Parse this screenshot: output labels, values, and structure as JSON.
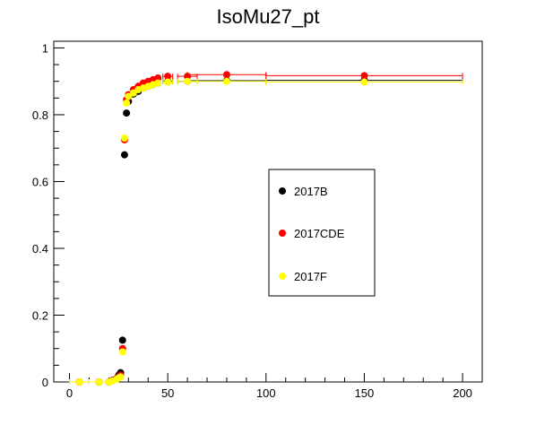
{
  "chart_data": {
    "type": "scatter",
    "title": "IsoMu27_pt",
    "xlabel": "",
    "ylabel": "",
    "xlim": [
      -8,
      210
    ],
    "ylim": [
      0,
      1.02
    ],
    "xticks": [
      0,
      50,
      100,
      150,
      200
    ],
    "xtick_labels": [
      "0",
      "50",
      "100",
      "150",
      "200"
    ],
    "yticks": [
      0,
      0.2,
      0.4,
      0.6,
      0.8,
      1
    ],
    "ytick_labels": [
      "0",
      "0.2",
      "0.4",
      "0.6",
      "0.8",
      "1"
    ],
    "grid": false,
    "legend": {
      "placement": "center-right",
      "entries": [
        "2017B",
        "2017CDE",
        "2017F"
      ]
    },
    "series": [
      {
        "name": "2017B",
        "color": "#000000",
        "x": [
          5,
          15,
          20,
          22,
          24,
          25,
          26,
          27,
          28,
          29,
          30,
          32.5,
          35,
          37.5,
          40,
          42.5,
          45,
          50,
          60,
          80,
          150
        ],
        "y": [
          0.0,
          0.0,
          0.0,
          0.005,
          0.01,
          0.02,
          0.028,
          0.125,
          0.68,
          0.805,
          0.84,
          0.862,
          0.87,
          0.88,
          0.885,
          0.89,
          0.895,
          0.9,
          0.9,
          0.902,
          0.903
        ],
        "xerr": [
          5,
          5,
          1,
          1,
          1,
          0.5,
          0.5,
          0.5,
          0.5,
          0.5,
          0.5,
          1.25,
          1.25,
          1.25,
          1.25,
          1.25,
          1.25,
          2.5,
          5,
          20,
          50
        ]
      },
      {
        "name": "2017CDE",
        "color": "#ff0000",
        "x": [
          5,
          15,
          20,
          22,
          24,
          25,
          26,
          27,
          28,
          29,
          30,
          32.5,
          35,
          37.5,
          40,
          42.5,
          45,
          50,
          60,
          80,
          150
        ],
        "y": [
          0.0,
          0.0,
          0.0,
          0.005,
          0.01,
          0.015,
          0.02,
          0.1,
          0.725,
          0.845,
          0.86,
          0.875,
          0.885,
          0.895,
          0.9,
          0.905,
          0.91,
          0.915,
          0.915,
          0.92,
          0.917
        ],
        "xerr": [
          5,
          5,
          1,
          1,
          1,
          0.5,
          0.5,
          0.5,
          0.5,
          0.5,
          0.5,
          1.25,
          1.25,
          1.25,
          1.25,
          1.25,
          1.25,
          2.5,
          5,
          20,
          50
        ]
      },
      {
        "name": "2017F",
        "color": "#ffff00",
        "x": [
          5,
          15,
          20,
          22,
          24,
          25,
          26,
          27,
          28,
          29,
          30,
          32.5,
          35,
          37.5,
          40,
          42.5,
          45,
          50,
          60,
          80,
          150
        ],
        "y": [
          0.0,
          0.0,
          0.0,
          0.003,
          0.008,
          0.012,
          0.015,
          0.09,
          0.73,
          0.835,
          0.855,
          0.865,
          0.875,
          0.88,
          0.885,
          0.89,
          0.895,
          0.898,
          0.9,
          0.9,
          0.898
        ],
        "xerr": [
          5,
          5,
          1,
          1,
          1,
          0.5,
          0.5,
          0.5,
          0.5,
          0.5,
          0.5,
          1.25,
          1.25,
          1.25,
          1.25,
          1.25,
          1.25,
          2.5,
          5,
          20,
          50
        ]
      }
    ]
  }
}
